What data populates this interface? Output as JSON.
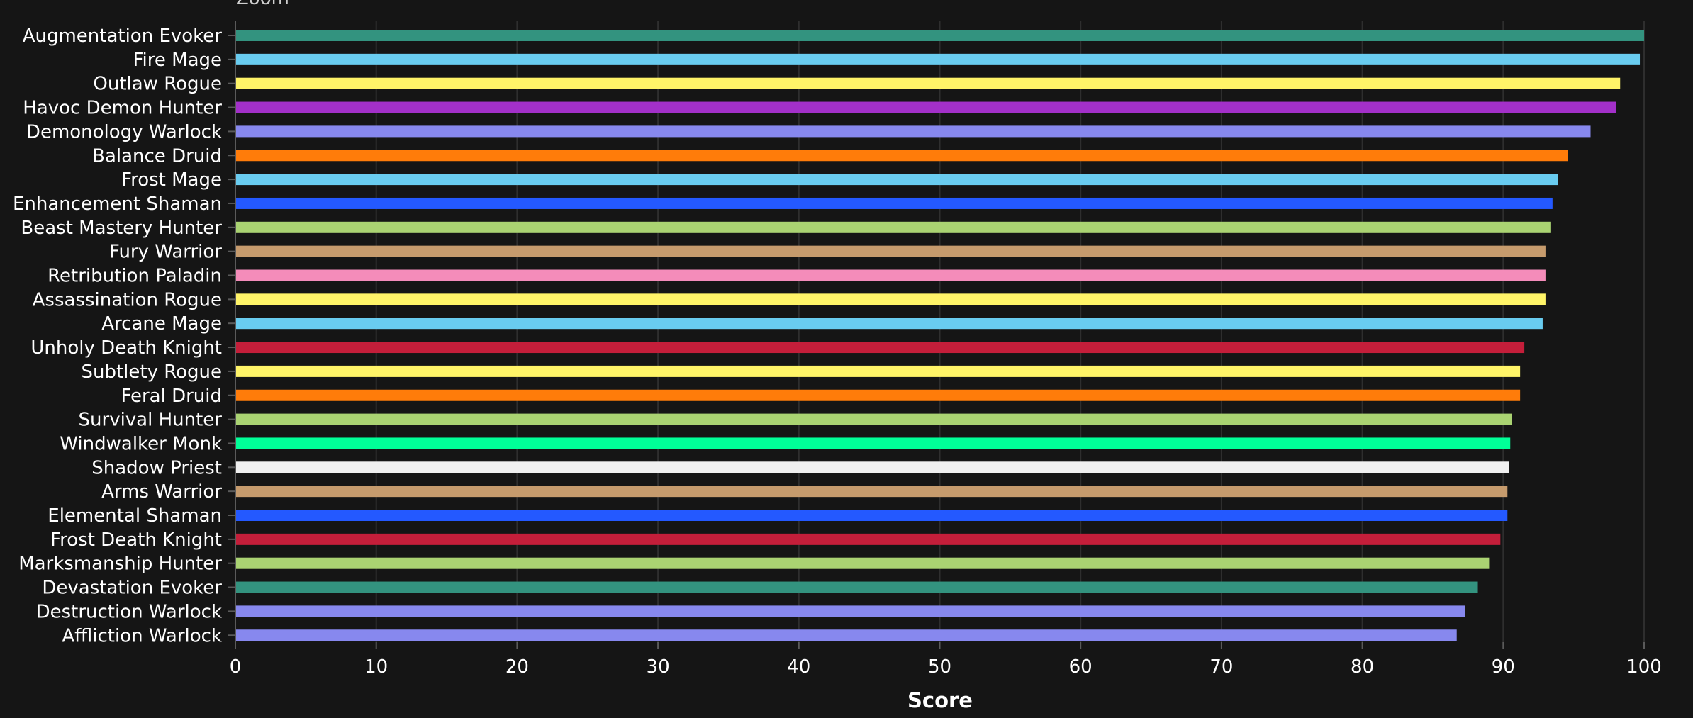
{
  "zoom_label": "Zoom",
  "chart_data": {
    "type": "bar",
    "orientation": "horizontal",
    "xlabel": "Score",
    "xlim": [
      0,
      100
    ],
    "x_ticks": [
      0,
      10,
      20,
      30,
      40,
      50,
      60,
      70,
      80,
      90,
      100
    ],
    "grid": true,
    "categories": [
      "Augmentation Evoker",
      "Fire Mage",
      "Outlaw Rogue",
      "Havoc Demon Hunter",
      "Demonology Warlock",
      "Balance Druid",
      "Frost Mage",
      "Enhancement Shaman",
      "Beast Mastery Hunter",
      "Fury Warrior",
      "Retribution Paladin",
      "Assassination Rogue",
      "Arcane Mage",
      "Unholy Death Knight",
      "Subtlety Rogue",
      "Feral Druid",
      "Survival Hunter",
      "Windwalker Monk",
      "Shadow Priest",
      "Arms Warrior",
      "Elemental Shaman",
      "Frost Death Knight",
      "Marksmanship Hunter",
      "Devastation Evoker",
      "Destruction Warlock",
      "Affliction Warlock"
    ],
    "values": [
      100.0,
      99.7,
      98.3,
      98.0,
      96.2,
      94.6,
      93.9,
      93.5,
      93.4,
      93.0,
      93.0,
      93.0,
      92.8,
      91.5,
      91.2,
      91.2,
      90.6,
      90.5,
      90.4,
      90.3,
      90.3,
      89.8,
      89.0,
      88.2,
      87.3,
      86.7
    ],
    "colors": [
      "#33937f",
      "#69ccf0",
      "#fff468",
      "#a330c9",
      "#8788ee",
      "#ff7c0a",
      "#69ccf0",
      "#2459ff",
      "#aad372",
      "#c69b6d",
      "#f48cba",
      "#fff468",
      "#69ccf0",
      "#c41e3a",
      "#fff468",
      "#ff7c0a",
      "#aad372",
      "#00ff98",
      "#f0f0f0",
      "#c69b6d",
      "#2459ff",
      "#c41e3a",
      "#aad372",
      "#33937f",
      "#8788ee",
      "#8788ee"
    ]
  }
}
